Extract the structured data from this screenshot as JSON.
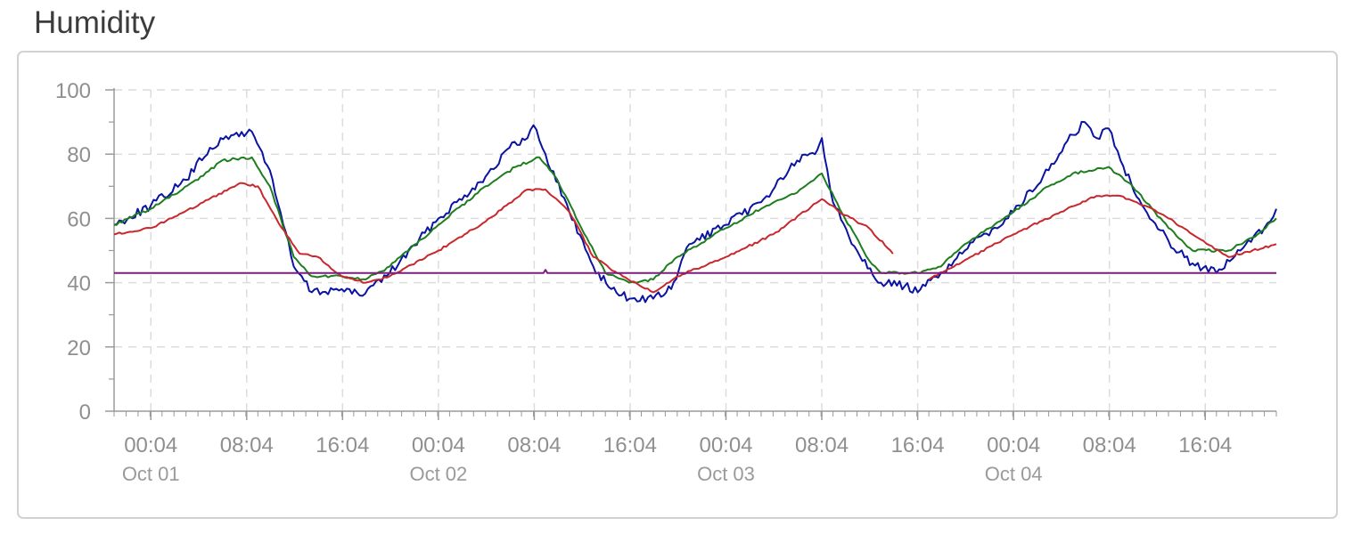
{
  "card": {
    "title": "Humidity"
  },
  "colors": {
    "blue": "#0a14a0",
    "green": "#1e7d1e",
    "red": "#c8282d",
    "purple": "#7a1f7a",
    "grid": "#dcdcdc",
    "axis": "#9a9a9a",
    "label": "#8f8f8f"
  },
  "chart_data": {
    "type": "line",
    "title": "",
    "xlabel": "",
    "ylabel": "",
    "ylim": [
      0,
      100
    ],
    "yticks": [
      0,
      20,
      40,
      60,
      80,
      100
    ],
    "xlim": [
      "2023-09-30 21:00",
      "2023-10-04 22:00"
    ],
    "x_ticks": [
      {
        "x": "2023-10-01 00:04",
        "label": "00:04",
        "date": "Oct 01"
      },
      {
        "x": "2023-10-01 08:04",
        "label": "08:04"
      },
      {
        "x": "2023-10-01 16:04",
        "label": "16:04"
      },
      {
        "x": "2023-10-02 00:04",
        "label": "00:04",
        "date": "Oct 02"
      },
      {
        "x": "2023-10-02 08:04",
        "label": "08:04"
      },
      {
        "x": "2023-10-02 16:04",
        "label": "16:04"
      },
      {
        "x": "2023-10-03 00:04",
        "label": "00:04",
        "date": "Oct 03"
      },
      {
        "x": "2023-10-03 08:04",
        "label": "08:04"
      },
      {
        "x": "2023-10-03 16:04",
        "label": "16:04"
      },
      {
        "x": "2023-10-04 00:04",
        "label": "00:04",
        "date": "Oct 04"
      },
      {
        "x": "2023-10-04 08:04",
        "label": "08:04"
      },
      {
        "x": "2023-10-04 16:04",
        "label": "16:04"
      }
    ],
    "grid": true,
    "legend": "none",
    "series": [
      {
        "color": "blue",
        "points": [
          [
            "2023-09-30 21:00",
            58
          ],
          [
            "2023-10-01 00:04",
            64
          ],
          [
            "2023-10-01 03:00",
            72
          ],
          [
            "2023-10-01 05:00",
            82
          ],
          [
            "2023-10-01 07:00",
            86
          ],
          [
            "2023-10-01 08:30",
            87
          ],
          [
            "2023-10-01 10:00",
            75
          ],
          [
            "2023-10-01 12:00",
            45
          ],
          [
            "2023-10-01 13:30",
            37
          ],
          [
            "2023-10-01 16:00",
            38
          ],
          [
            "2023-10-01 17:30",
            36
          ],
          [
            "2023-10-01 20:00",
            43
          ],
          [
            "2023-10-02 00:04",
            60
          ],
          [
            "2023-10-02 04:00",
            73
          ],
          [
            "2023-10-02 06:00",
            82
          ],
          [
            "2023-10-02 07:30",
            85
          ],
          [
            "2023-10-02 08:00",
            89
          ],
          [
            "2023-10-02 09:00",
            80
          ],
          [
            "2023-10-02 11:00",
            62
          ],
          [
            "2023-10-02 13:00",
            45
          ],
          [
            "2023-10-02 14:30",
            38
          ],
          [
            "2023-10-02 16:00",
            35
          ],
          [
            "2023-10-02 18:00",
            35
          ],
          [
            "2023-10-02 19:30",
            38
          ],
          [
            "2023-10-02 21:00",
            52
          ],
          [
            "2023-10-03 00:04",
            58
          ],
          [
            "2023-10-03 03:00",
            65
          ],
          [
            "2023-10-03 06:00",
            78
          ],
          [
            "2023-10-03 07:30",
            80
          ],
          [
            "2023-10-03 08:04",
            85
          ],
          [
            "2023-10-03 09:00",
            65
          ],
          [
            "2023-10-03 11:00",
            50
          ],
          [
            "2023-10-03 13:00",
            40
          ],
          [
            "2023-10-03 15:00",
            39
          ],
          [
            "2023-10-03 16:04",
            37
          ],
          [
            "2023-10-03 18:00",
            43
          ],
          [
            "2023-10-03 20:00",
            50
          ],
          [
            "2023-10-04 00:04",
            62
          ],
          [
            "2023-10-04 03:00",
            75
          ],
          [
            "2023-10-04 05:00",
            86
          ],
          [
            "2023-10-04 06:00",
            90
          ],
          [
            "2023-10-04 07:00",
            85
          ],
          [
            "2023-10-04 08:00",
            88
          ],
          [
            "2023-10-04 09:00",
            78
          ],
          [
            "2023-10-04 11:00",
            63
          ],
          [
            "2023-10-04 13:00",
            53
          ],
          [
            "2023-10-04 15:00",
            46
          ],
          [
            "2023-10-04 17:00",
            43
          ],
          [
            "2023-10-04 19:00",
            50
          ],
          [
            "2023-10-04 21:00",
            57
          ],
          [
            "2023-10-04 22:00",
            63
          ]
        ]
      },
      {
        "color": "green",
        "points": [
          [
            "2023-09-30 21:00",
            58
          ],
          [
            "2023-10-01 00:04",
            63
          ],
          [
            "2023-10-01 04:00",
            72
          ],
          [
            "2023-10-01 06:00",
            78
          ],
          [
            "2023-10-01 08:30",
            79
          ],
          [
            "2023-10-01 10:00",
            70
          ],
          [
            "2023-10-01 12:00",
            48
          ],
          [
            "2023-10-01 13:30",
            42
          ],
          [
            "2023-10-01 16:00",
            42
          ],
          [
            "2023-10-01 18:00",
            41
          ],
          [
            "2023-10-01 20:00",
            45
          ],
          [
            "2023-10-02 00:04",
            58
          ],
          [
            "2023-10-02 04:00",
            70
          ],
          [
            "2023-10-02 06:30",
            76
          ],
          [
            "2023-10-02 08:30",
            79
          ],
          [
            "2023-10-02 10:00",
            72
          ],
          [
            "2023-10-02 12:00",
            57
          ],
          [
            "2023-10-02 14:00",
            43
          ],
          [
            "2023-10-02 16:00",
            40
          ],
          [
            "2023-10-02 18:00",
            41
          ],
          [
            "2023-10-02 20:00",
            48
          ],
          [
            "2023-10-03 00:04",
            57
          ],
          [
            "2023-10-03 03:00",
            63
          ],
          [
            "2023-10-03 06:00",
            68
          ],
          [
            "2023-10-03 08:04",
            74
          ],
          [
            "2023-10-03 10:00",
            60
          ],
          [
            "2023-10-03 12:00",
            47
          ],
          [
            "2023-10-03 13:00",
            43
          ],
          [
            "2023-10-03 16:04",
            43
          ],
          [
            "2023-10-03 18:00",
            45
          ],
          [
            "2023-10-03 20:00",
            52
          ],
          [
            "2023-10-04 00:04",
            62
          ],
          [
            "2023-10-04 03:00",
            70
          ],
          [
            "2023-10-04 05:00",
            74
          ],
          [
            "2023-10-04 08:00",
            76
          ],
          [
            "2023-10-04 10:00",
            70
          ],
          [
            "2023-10-04 13:00",
            57
          ],
          [
            "2023-10-04 15:00",
            50
          ],
          [
            "2023-10-04 18:00",
            50
          ],
          [
            "2023-10-04 20:00",
            54
          ],
          [
            "2023-10-04 22:00",
            60
          ]
        ]
      },
      {
        "color": "red",
        "points": [
          [
            "2023-09-30 21:00",
            55
          ],
          [
            "2023-10-01 00:04",
            57
          ],
          [
            "2023-10-01 04:00",
            64
          ],
          [
            "2023-10-01 07:30",
            71
          ],
          [
            "2023-10-01 09:00",
            70
          ],
          [
            "2023-10-01 11:00",
            57
          ],
          [
            "2023-10-01 12:30",
            49
          ],
          [
            "2023-10-01 14:00",
            48
          ],
          [
            "2023-10-01 16:00",
            42
          ],
          [
            "2023-10-01 18:00",
            40
          ],
          [
            "2023-10-01 20:00",
            42
          ],
          [
            "2023-10-02 00:04",
            50
          ],
          [
            "2023-10-02 04:00",
            59
          ],
          [
            "2023-10-02 07:30",
            69
          ],
          [
            "2023-10-02 09:00",
            69
          ],
          [
            "2023-10-02 11:00",
            62
          ],
          [
            "2023-10-02 13:00",
            48
          ],
          [
            "2023-10-02 15:00",
            43
          ],
          [
            "2023-10-02 18:00",
            37
          ],
          [
            "2023-10-02 20:00",
            42
          ],
          [
            "2023-10-03 00:04",
            48
          ],
          [
            "2023-10-03 04:00",
            55
          ],
          [
            "2023-10-03 08:04",
            66
          ],
          [
            "2023-10-03 10:00",
            61
          ],
          [
            "2023-10-03 12:00",
            57
          ],
          [
            "2023-10-03 14:00",
            49
          ]
        ]
      },
      {
        "color": "red",
        "points": [
          [
            "2023-10-03 17:00",
            41
          ],
          [
            "2023-10-03 20:00",
            47
          ],
          [
            "2023-10-04 00:04",
            55
          ],
          [
            "2023-10-04 04:00",
            62
          ],
          [
            "2023-10-04 07:00",
            67
          ],
          [
            "2023-10-04 09:00",
            67
          ],
          [
            "2023-10-04 11:00",
            64
          ],
          [
            "2023-10-04 13:00",
            60
          ],
          [
            "2023-10-04 15:00",
            55
          ],
          [
            "2023-10-04 18:00",
            48
          ],
          [
            "2023-10-04 20:00",
            50
          ],
          [
            "2023-10-04 22:00",
            52
          ]
        ]
      },
      {
        "color": "purple",
        "points": [
          [
            "2023-09-30 21:00",
            43
          ],
          [
            "2023-10-02 08:50",
            43
          ],
          [
            "2023-10-02 09:00",
            44
          ],
          [
            "2023-10-02 09:10",
            43
          ],
          [
            "2023-10-04 22:00",
            43
          ]
        ]
      }
    ]
  }
}
